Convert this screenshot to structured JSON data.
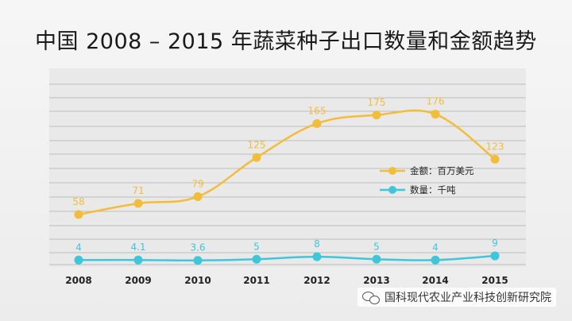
{
  "title": "中国 2008 – 2015 年蔬菜种子出口数量和金额趋势",
  "watermark": {
    "text": "国科现代农业产业科技创新研究院",
    "icon": "wechat-icon"
  },
  "chart_data": {
    "type": "line",
    "x": [
      "2008",
      "2009",
      "2010",
      "2011",
      "2012",
      "2013",
      "2014",
      "2015"
    ],
    "series": [
      {
        "name": "金额：百万美元",
        "color": "#f2bd3a",
        "values": [
          58,
          71,
          79,
          125,
          165,
          175,
          176,
          123
        ],
        "labels": [
          "58",
          "71",
          "79",
          "125",
          "165",
          "175",
          "176",
          "123"
        ]
      },
      {
        "name": "数量：千吨",
        "color": "#3fc6d9",
        "values": [
          4,
          4.1,
          3.6,
          5,
          8,
          5,
          4,
          9
        ],
        "labels": [
          "4",
          "4.1",
          "3.6",
          "5",
          "8",
          "5",
          "4",
          "9"
        ]
      }
    ],
    "legend": "right",
    "grid": true
  }
}
